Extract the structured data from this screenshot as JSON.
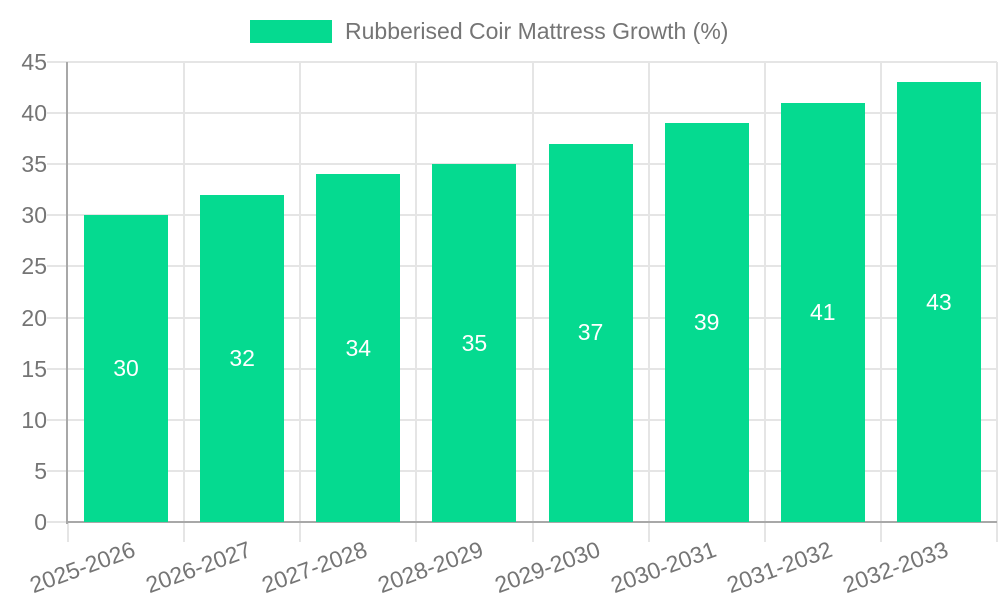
{
  "legend": {
    "label": "Rubberised Coir Mattress Growth (%)"
  },
  "colors": {
    "bar": "#05da90",
    "axis_line": "#a8a8a8",
    "grid_line": "#e5e5e5",
    "tick_label": "#757575",
    "bar_value_label": "#ffffff",
    "background": "#ffffff"
  },
  "chart_data": {
    "type": "bar",
    "title": "Rubberised Coir Mattress Growth (%)",
    "categories": [
      "2025-2026",
      "2026-2027",
      "2027-2028",
      "2028-2029",
      "2029-2030",
      "2030-2031",
      "2031-2032",
      "2032-2033"
    ],
    "series": [
      {
        "name": "Rubberised Coir Mattress Growth (%)",
        "values": [
          30,
          32,
          34,
          35,
          37,
          39,
          41,
          43
        ]
      }
    ],
    "value_labels_shown_inside_bars": true,
    "xlabel": "",
    "ylabel": "",
    "ylim": [
      0,
      45
    ],
    "yticks": [
      0,
      5,
      10,
      15,
      20,
      25,
      30,
      35,
      40,
      45
    ],
    "grid": "both",
    "legend_position": "top",
    "x_tick_label_rotation_deg": -20
  }
}
